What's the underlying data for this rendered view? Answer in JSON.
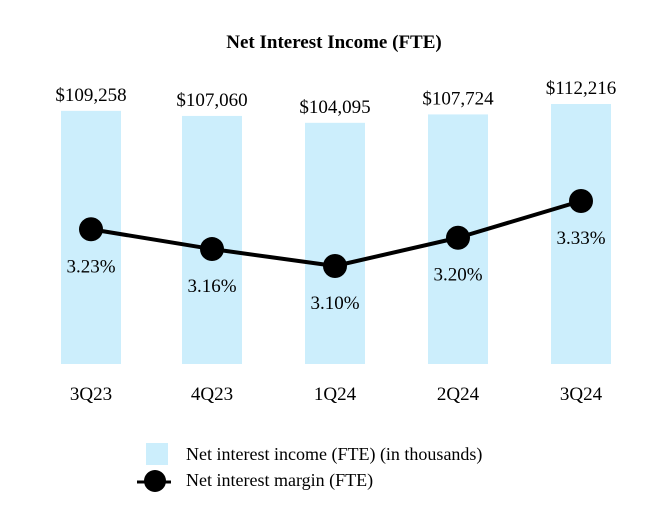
{
  "chart_data": {
    "type": "bar",
    "title": "Net Interest Income (FTE)",
    "categories": [
      "3Q23",
      "4Q23",
      "1Q24",
      "2Q24",
      "3Q24"
    ],
    "series": [
      {
        "name": "Net interest income (FTE) (in thousands)",
        "type": "bar",
        "values": [
          109258,
          107060,
          104095,
          107724,
          112216
        ],
        "labels": [
          "$109,258",
          "$107,060",
          "$104,095",
          "$107,724",
          "$112,216"
        ],
        "color": "#cceefc"
      },
      {
        "name": "Net interest margin (FTE)",
        "type": "line",
        "values": [
          3.23,
          3.16,
          3.1,
          3.2,
          3.33
        ],
        "labels": [
          "3.23%",
          "3.16%",
          "3.10%",
          "3.20%",
          "3.33%"
        ],
        "color": "#000000"
      }
    ],
    "bar_axis_range": [
      0,
      112216
    ],
    "line_axis_range": [
      2.4,
      3.5
    ],
    "xlabel": "",
    "ylabel": "",
    "grid": false,
    "legend_position": "bottom-center"
  }
}
